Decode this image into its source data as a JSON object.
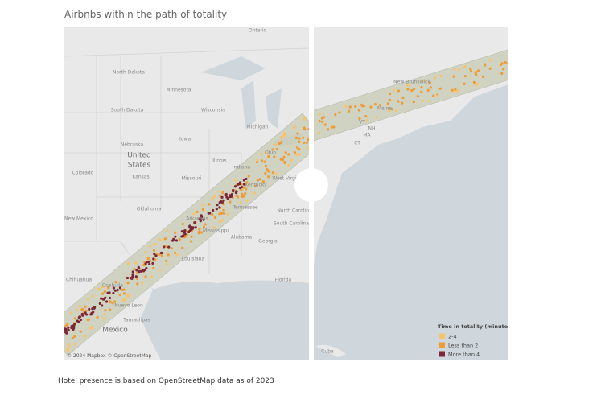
{
  "title": "Airbnbs within the path of totality",
  "map": {
    "left_labels": [
      "Ontario",
      "North Dakota",
      "Minnesota",
      "South Dakota",
      "Wisconsin",
      "Michigan",
      "Iowa",
      "Nebraska",
      "United",
      "States",
      "Kansas",
      "Colorado",
      "Illinois",
      "Indiana",
      "Ohio",
      "Missouri",
      "Kentucky",
      "West Virginia",
      "Oklahoma",
      "Tennessee",
      "Arkansas",
      "New Mexico",
      "North Carolina",
      "South Carolina",
      "Mississippi",
      "Alabama",
      "Georgia",
      "Louisiana",
      "Florida",
      "Chihuahua",
      "Coahuila",
      "Nuevo Leon",
      "Tamaulipas",
      "Mexico"
    ],
    "right_labels": [
      "New Brunswick",
      "Maine",
      "VT",
      "NH",
      "MA",
      "CT",
      "Cuba"
    ],
    "attribution": "© 2024 Mapbox © OpenStreetMap"
  },
  "legend": {
    "title": "Time in totality (minutes)",
    "items": [
      {
        "label": "2-4",
        "color": "#f6c46a"
      },
      {
        "label": "Less than 2",
        "color": "#ee9c35"
      },
      {
        "label": "More than 4",
        "color": "#7b2737"
      }
    ]
  },
  "footnote": "Hotel presence is based on OpenStreetMap data as of 2023"
}
